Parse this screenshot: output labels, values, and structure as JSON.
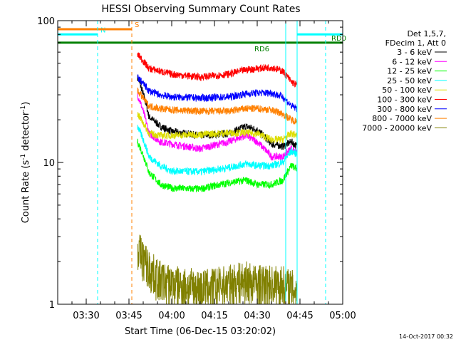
{
  "chart_data": {
    "type": "line",
    "title": "HESSI Observing Summary Count Rates",
    "xlabel": "Start Time (06-Dec-15 03:20:02)",
    "ylabel": "Count Rate (s",
    "ylabel_sup": "-1",
    "ylabel_tail": " detector",
    "ylabel_sup2": "-1",
    "ylabel_end": ")",
    "y_scale": "log",
    "ylim": [
      1,
      100
    ],
    "xlim": [
      "03:20",
      "05:00"
    ],
    "x_ticks": [
      "03:30",
      "03:45",
      "04:00",
      "04:15",
      "04:30",
      "04:45",
      "05:00"
    ],
    "y_ticks": [
      "1",
      "10",
      "100"
    ],
    "timestamp": "14-Oct-2017 00:32",
    "legend_header": [
      "Det 1,5,7,",
      "FDecim 1, Att 0"
    ],
    "series": [
      {
        "name": "3 - 6 keV",
        "color": "#000000",
        "x": [
          "03:48",
          "03:52",
          "03:56",
          "04:00",
          "04:10",
          "04:20",
          "04:26",
          "04:30",
          "04:35",
          "04:39",
          "04:42",
          "04:44"
        ],
        "values": [
          40,
          21,
          18,
          16.5,
          15.5,
          16,
          18,
          17,
          13.5,
          13,
          14,
          13
        ]
      },
      {
        "name": "6 - 12 keV",
        "color": "#ff00ff",
        "x": [
          "03:48",
          "03:52",
          "03:56",
          "04:00",
          "04:10",
          "04:20",
          "04:26",
          "04:30",
          "04:35",
          "04:39",
          "04:42",
          "04:44"
        ],
        "values": [
          30,
          16,
          14,
          13.5,
          12.5,
          14,
          15.5,
          14,
          11,
          11,
          12.5,
          11.5
        ]
      },
      {
        "name": "12 - 25 keV",
        "color": "#00ff00",
        "x": [
          "03:48",
          "03:52",
          "03:56",
          "04:00",
          "04:10",
          "04:20",
          "04:26",
          "04:30",
          "04:35",
          "04:39",
          "04:42",
          "04:44"
        ],
        "values": [
          14,
          8.5,
          7,
          6.6,
          6.5,
          7.2,
          7.5,
          7,
          7,
          7.5,
          9.5,
          9
        ]
      },
      {
        "name": "25 - 50 keV",
        "color": "#00ffff",
        "x": [
          "03:48",
          "03:52",
          "03:56",
          "04:00",
          "04:10",
          "04:20",
          "04:26",
          "04:30",
          "04:35",
          "04:39",
          "04:42",
          "04:44"
        ],
        "values": [
          18,
          11,
          9.5,
          8.7,
          8.6,
          9.2,
          9.8,
          9.5,
          9.5,
          10,
          12,
          11.5
        ]
      },
      {
        "name": "50 - 100 keV",
        "color": "#dddd00",
        "x": [
          "03:48",
          "03:52",
          "03:56",
          "04:00",
          "04:10",
          "04:20",
          "04:26",
          "04:30",
          "04:35",
          "04:39",
          "04:42",
          "04:44"
        ],
        "values": [
          22,
          16,
          15.5,
          15.5,
          15.8,
          16.2,
          16.2,
          16,
          14.5,
          14.5,
          16,
          15.5
        ]
      },
      {
        "name": "100 - 300 keV",
        "color": "#ff0000",
        "x": [
          "03:48",
          "03:52",
          "03:56",
          "04:00",
          "04:10",
          "04:20",
          "04:26",
          "04:30",
          "04:35",
          "04:39",
          "04:42",
          "04:44"
        ],
        "values": [
          58,
          46,
          44,
          42,
          40,
          42,
          45,
          46,
          47,
          44,
          37,
          35
        ]
      },
      {
        "name": "300 - 800 keV",
        "color": "#0000ff",
        "x": [
          "03:48",
          "03:52",
          "03:56",
          "04:00",
          "04:10",
          "04:20",
          "04:26",
          "04:30",
          "04:35",
          "04:39",
          "04:42",
          "04:44"
        ],
        "values": [
          40,
          32,
          30,
          29,
          28.5,
          29,
          30.5,
          31,
          31,
          29,
          25,
          24
        ]
      },
      {
        "name": "800 - 7000 keV",
        "color": "#ff8000",
        "x": [
          "03:48",
          "03:52",
          "03:56",
          "04:00",
          "04:10",
          "04:20",
          "04:26",
          "04:30",
          "04:35",
          "04:39",
          "04:42",
          "04:44"
        ],
        "values": [
          32,
          25,
          24,
          23.5,
          23,
          23,
          24,
          24,
          23.5,
          22,
          20,
          19.5
        ]
      },
      {
        "name": "7000 - 20000 keV",
        "color": "#808000",
        "x": [
          "03:48",
          "03:52",
          "03:56",
          "04:00",
          "04:10",
          "04:20",
          "04:26",
          "04:30",
          "04:35",
          "04:39",
          "04:42",
          "04:44"
        ],
        "values": [
          2.5,
          1.8,
          1.5,
          1.4,
          1.3,
          1.4,
          1.5,
          1.4,
          1.4,
          1.4,
          1.3,
          1.3
        ]
      }
    ],
    "annotations": [
      {
        "label": "N",
        "color": "#00ffff",
        "x_start": "03:20",
        "x_end": "03:34",
        "value": 80
      },
      {
        "label": "S",
        "color": "#ff8000",
        "x_start": "03:20",
        "x_end": "03:46",
        "value": 87
      },
      {
        "label": "RD6",
        "color": "#008000",
        "x_start": "03:20",
        "x_end": "04:37",
        "value": 70
      },
      {
        "label": "RD0",
        "color": "#008000",
        "x_start": "04:37",
        "x_end": "04:55",
        "value": 70
      }
    ],
    "markers": [
      {
        "x": "03:20",
        "color": "#00ffff",
        "style": "solid"
      },
      {
        "x": "03:34",
        "color": "#00ffff",
        "style": "dashed"
      },
      {
        "x": "03:46",
        "color": "#ff8000",
        "style": "dashed"
      },
      {
        "x": "04:40",
        "color": "#00ffff",
        "style": "solid"
      },
      {
        "x": "04:44",
        "color": "#00ffff",
        "style": "solid"
      },
      {
        "x": "04:54",
        "color": "#00ffff",
        "style": "dashed"
      }
    ]
  }
}
